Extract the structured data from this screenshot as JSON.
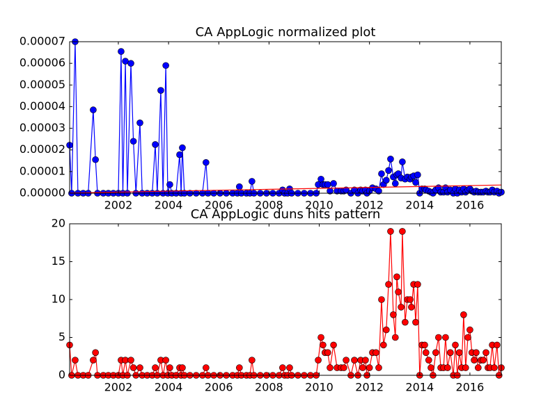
{
  "chart_data": [
    {
      "type": "line",
      "title": "CA AppLogic normalized plot",
      "xlim": [
        2000.06,
        2017.25
      ],
      "xticks": [
        2002,
        2004,
        2006,
        2008,
        2010,
        2012,
        2014,
        2016
      ],
      "ylim": [
        0,
        7e-05
      ],
      "yticks": [
        {
          "value": 0,
          "label": "0.00000"
        },
        {
          "value": 1e-05,
          "label": "0.00001"
        },
        {
          "value": 2e-05,
          "label": "0.00002"
        },
        {
          "value": 3e-05,
          "label": "0.00003"
        },
        {
          "value": 4e-05,
          "label": "0.00004"
        },
        {
          "value": 5e-05,
          "label": "0.00005"
        },
        {
          "value": 6e-05,
          "label": "0.00006"
        },
        {
          "value": 7e-05,
          "label": "0.00007"
        }
      ],
      "series": [
        {
          "color": "#0000ff",
          "marker": "o",
          "x": [
            2000.06,
            2000.14,
            2000.28,
            2000.39,
            2000.6,
            2000.8,
            2001.0,
            2001.09,
            2001.17,
            2001.4,
            2001.6,
            2001.8,
            2002.0,
            2002.11,
            2002.18,
            2002.28,
            2002.36,
            2002.5,
            2002.6,
            2002.7,
            2002.86,
            2002.95,
            2003.15,
            2003.35,
            2003.47,
            2003.55,
            2003.69,
            2003.78,
            2003.89,
            2003.97,
            2004.05,
            2004.13,
            2004.3,
            2004.44,
            2004.5,
            2004.55,
            2004.63,
            2004.85,
            2005.1,
            2005.35,
            2005.49,
            2005.57,
            2005.8,
            2006.05,
            2006.3,
            2006.55,
            2006.74,
            2006.82,
            2006.9,
            2007.1,
            2007.24,
            2007.32,
            2007.4,
            2007.65,
            2007.9,
            2008.15,
            2008.4,
            2008.54,
            2008.62,
            2008.74,
            2008.82,
            2008.9,
            2009.15,
            2009.4,
            2009.65,
            2009.88,
            2009.96,
            2010.07,
            2010.15,
            2010.23,
            2010.34,
            2010.43,
            2010.57,
            2010.71,
            2010.87,
            2010.98,
            2011.07,
            2011.26,
            2011.4,
            2011.54,
            2011.65,
            2011.73,
            2011.84,
            2011.9,
            2012.0,
            2012.12,
            2012.26,
            2012.37,
            2012.48,
            2012.56,
            2012.67,
            2012.76,
            2012.84,
            2012.95,
            2013.03,
            2013.09,
            2013.15,
            2013.26,
            2013.31,
            2013.42,
            2013.51,
            2013.62,
            2013.67,
            2013.76,
            2013.84,
            2013.92,
            2014.0,
            2014.09,
            2014.2,
            2014.25,
            2014.36,
            2014.45,
            2014.53,
            2014.64,
            2014.75,
            2014.84,
            2014.95,
            2015.03,
            2015.11,
            2015.22,
            2015.34,
            2015.42,
            2015.5,
            2015.58,
            2015.67,
            2015.75,
            2015.83,
            2015.92,
            2016.0,
            2016.08,
            2016.17,
            2016.25,
            2016.33,
            2016.44,
            2016.53,
            2016.64,
            2016.72,
            2016.8,
            2016.89,
            2016.97,
            2017.08,
            2017.16,
            2017.25
          ],
          "values": [
            2.22e-05,
            0,
            7e-05,
            0,
            0,
            0,
            3.85e-05,
            1.55e-05,
            0,
            0,
            0,
            0,
            0,
            6.55e-05,
            0,
            6.1e-05,
            0,
            6e-05,
            2.4e-05,
            0,
            3.25e-05,
            0,
            0,
            0,
            2.25e-05,
            0,
            4.75e-05,
            0,
            5.9e-05,
            0,
            4e-06,
            0,
            0,
            1.78e-05,
            0,
            2.1e-05,
            0,
            0,
            0,
            0,
            1.42e-05,
            0,
            0,
            0,
            0,
            0,
            0,
            3e-06,
            0,
            0,
            0,
            5.5e-06,
            0,
            0,
            0,
            0,
            0,
            1.5e-06,
            0,
            0,
            2e-06,
            0,
            0,
            0,
            0,
            0,
            4e-06,
            6.5e-06,
            4e-06,
            4e-06,
            4e-06,
            1e-06,
            4.5e-06,
            1e-06,
            1e-06,
            1e-06,
            1.5e-06,
            0,
            1.5e-06,
            0,
            1.5e-06,
            1e-06,
            1.5e-06,
            0,
            1e-06,
            2.5e-06,
            2e-06,
            1e-06,
            9e-06,
            4e-06,
            6e-06,
            1.05e-05,
            1.58e-05,
            7.5e-06,
            4.5e-06,
            8.5e-06,
            9e-06,
            7e-06,
            1.45e-05,
            6.5e-06,
            7.5e-06,
            6.5e-06,
            7.5e-06,
            8e-06,
            5e-06,
            8.5e-06,
            0,
            2e-06,
            2e-06,
            1.5e-06,
            1e-06,
            5e-07,
            0,
            1.5e-06,
            2.5e-06,
            5e-07,
            5e-07,
            2.5e-06,
            5e-07,
            1.5e-06,
            0,
            2e-06,
            0,
            1.5e-06,
            5e-07,
            2e-06,
            5e-07,
            1.5e-06,
            2e-06,
            1e-06,
            5e-07,
            1e-06,
            5e-07,
            5e-07,
            5e-07,
            1e-06,
            5e-07,
            5e-07,
            1.5e-06,
            5e-07,
            1e-06,
            0,
            5e-07
          ]
        },
        {
          "color": "#ff0000",
          "x": [
            2000.06,
            2017.25
          ],
          "values": [
            1e-07,
            3.8e-06
          ]
        }
      ]
    },
    {
      "type": "line",
      "title": "CA AppLogic duns hits pattern",
      "xlim": [
        2000.06,
        2017.25
      ],
      "xticks": [
        2002,
        2004,
        2006,
        2008,
        2010,
        2012,
        2014,
        2016
      ],
      "ylim": [
        0,
        20
      ],
      "yticks": [
        0,
        5,
        10,
        15,
        20
      ],
      "series": [
        {
          "color": "#ff0000",
          "marker": "o",
          "x": [
            2000.06,
            2000.14,
            2000.28,
            2000.39,
            2000.6,
            2000.8,
            2001.0,
            2001.09,
            2001.17,
            2001.4,
            2001.6,
            2001.8,
            2002.0,
            2002.11,
            2002.18,
            2002.28,
            2002.36,
            2002.5,
            2002.6,
            2002.7,
            2002.86,
            2002.95,
            2003.15,
            2003.35,
            2003.47,
            2003.55,
            2003.69,
            2003.78,
            2003.89,
            2003.97,
            2004.05,
            2004.13,
            2004.3,
            2004.44,
            2004.5,
            2004.55,
            2004.63,
            2004.85,
            2005.1,
            2005.35,
            2005.49,
            2005.57,
            2005.8,
            2006.05,
            2006.3,
            2006.55,
            2006.74,
            2006.82,
            2006.9,
            2007.1,
            2007.24,
            2007.32,
            2007.4,
            2007.65,
            2007.9,
            2008.15,
            2008.4,
            2008.54,
            2008.62,
            2008.74,
            2008.82,
            2008.9,
            2009.15,
            2009.4,
            2009.65,
            2009.88,
            2009.96,
            2010.07,
            2010.15,
            2010.23,
            2010.34,
            2010.43,
            2010.57,
            2010.71,
            2010.87,
            2010.98,
            2011.07,
            2011.26,
            2011.4,
            2011.54,
            2011.65,
            2011.73,
            2011.84,
            2011.9,
            2012.0,
            2012.12,
            2012.26,
            2012.37,
            2012.48,
            2012.56,
            2012.67,
            2012.76,
            2012.84,
            2012.95,
            2013.03,
            2013.09,
            2013.15,
            2013.26,
            2013.31,
            2013.42,
            2013.51,
            2013.62,
            2013.67,
            2013.76,
            2013.84,
            2013.92,
            2014.0,
            2014.09,
            2014.2,
            2014.25,
            2014.36,
            2014.45,
            2014.53,
            2014.64,
            2014.75,
            2014.84,
            2014.95,
            2015.03,
            2015.11,
            2015.22,
            2015.34,
            2015.42,
            2015.5,
            2015.58,
            2015.67,
            2015.75,
            2015.83,
            2015.92,
            2016.0,
            2016.08,
            2016.17,
            2016.25,
            2016.33,
            2016.44,
            2016.53,
            2016.64,
            2016.72,
            2016.8,
            2016.89,
            2016.97,
            2017.08,
            2017.16,
            2017.25
          ],
          "values": [
            4,
            0,
            2,
            0,
            0,
            0,
            2,
            3,
            0,
            0,
            0,
            0,
            0,
            2,
            0,
            2,
            0,
            2,
            1,
            0,
            1,
            0,
            0,
            0,
            1,
            0,
            2,
            0,
            2,
            0,
            1,
            0,
            0,
            1,
            0,
            1,
            0,
            0,
            0,
            0,
            1,
            0,
            0,
            0,
            0,
            0,
            0,
            1,
            0,
            0,
            0,
            2,
            0,
            0,
            0,
            0,
            0,
            1,
            0,
            0,
            1,
            0,
            0,
            0,
            0,
            0,
            2,
            5,
            4,
            3,
            3,
            1,
            4,
            1,
            1,
            1,
            2,
            0,
            2,
            0,
            2,
            1,
            2,
            0,
            1,
            3,
            3,
            1,
            10,
            4,
            6,
            12,
            19,
            8,
            5,
            13,
            11,
            9,
            19,
            7,
            10,
            10,
            9,
            12,
            7,
            12,
            0,
            4,
            4,
            3,
            2,
            1,
            0,
            3,
            5,
            1,
            1,
            5,
            1,
            3,
            0,
            4,
            0,
            3,
            1,
            8,
            1,
            5,
            6,
            3,
            2,
            3,
            1,
            2,
            2,
            3,
            1,
            1,
            4,
            1,
            4,
            0,
            1
          ]
        }
      ]
    }
  ]
}
